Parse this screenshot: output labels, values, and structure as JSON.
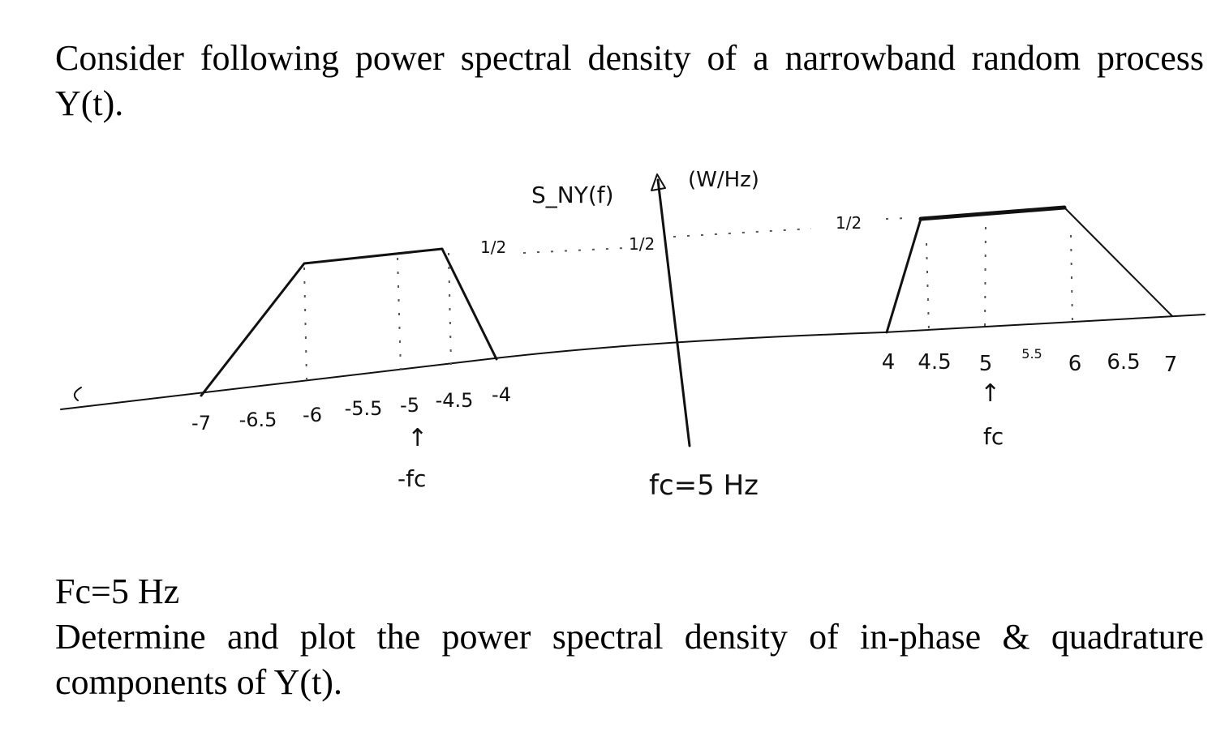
{
  "paragraphs": [
    "Consider following power spectral density of a narrowband random process Y(t).",
    "Fc=5 Hz",
    "Determine and plot the power spectral density of in-phase & quadrature components of Y(t)."
  ],
  "figure": {
    "y_label": "S_NY(f)",
    "unit": "(W/Hz)",
    "level_labels": [
      "1/2",
      "1/2",
      "1/2"
    ],
    "left_ticks": [
      "-7",
      "-6.5",
      "-6",
      "-5.5",
      "-5",
      "-4.5",
      "-4"
    ],
    "right_ticks": [
      "4",
      "4.5",
      "5",
      "5.5",
      "6",
      "6.5",
      "7"
    ],
    "left_marker": "-fc",
    "right_marker": "fc",
    "note": "fc=5 Hz"
  }
}
